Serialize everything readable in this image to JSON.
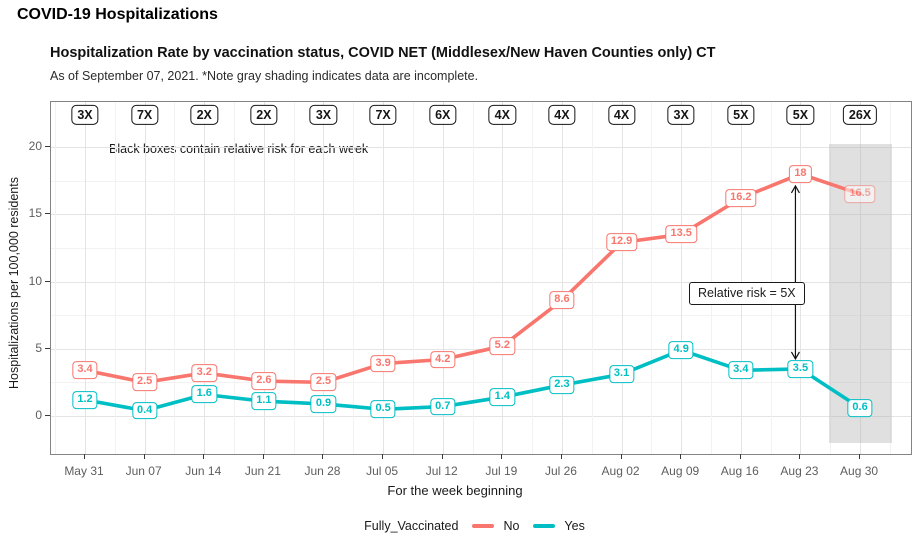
{
  "page": {
    "title": "COVID-19 Hospitalizations"
  },
  "chart_data": {
    "type": "line",
    "title": "Hospitalization Rate by vaccination status, COVID NET (Middlesex/New Haven Counties only) CT",
    "subtitle": "As of September 07, 2021. *Note gray shading indicates data are incomplete.",
    "xlabel": "For the week beginning",
    "ylabel": "Hospitalizations per 100,000 residents",
    "x": [
      "May 31",
      "Jun 07",
      "Jun 14",
      "Jun 21",
      "Jun 28",
      "Jul 05",
      "Jul 12",
      "Jul 19",
      "Jul 26",
      "Aug 02",
      "Aug 09",
      "Aug 16",
      "Aug 23",
      "Aug 30"
    ],
    "series": [
      {
        "name": "No",
        "color": "#F8766D",
        "values": [
          3.4,
          2.5,
          3.2,
          2.6,
          2.5,
          3.9,
          4.2,
          5.2,
          8.6,
          12.9,
          13.5,
          16.2,
          18,
          16.5
        ]
      },
      {
        "name": "Yes",
        "color": "#00BFC4",
        "values": [
          1.2,
          0.4,
          1.6,
          1.1,
          0.9,
          0.5,
          0.7,
          1.4,
          2.3,
          3.1,
          4.9,
          3.4,
          3.5,
          0.6
        ]
      }
    ],
    "relative_risk_per_week": [
      "3X",
      "7X",
      "2X",
      "2X",
      "3X",
      "7X",
      "6X",
      "4X",
      "4X",
      "4X",
      "3X",
      "5X",
      "5X",
      "26X"
    ],
    "risk_note": "Black boxes contain relative risk for each week",
    "relative_risk_callout": {
      "text": "Relative risk = 5X",
      "week": "Aug 23"
    },
    "incomplete_week": "Aug 30",
    "incomplete_shading_color": "rgba(173,173,173,0.38)",
    "ylim": [
      0,
      20
    ],
    "yticks": [
      0,
      5,
      10,
      15,
      20
    ],
    "legend_title": "Fully_Vaccinated",
    "legend_position": "bottom",
    "grid": true
  }
}
